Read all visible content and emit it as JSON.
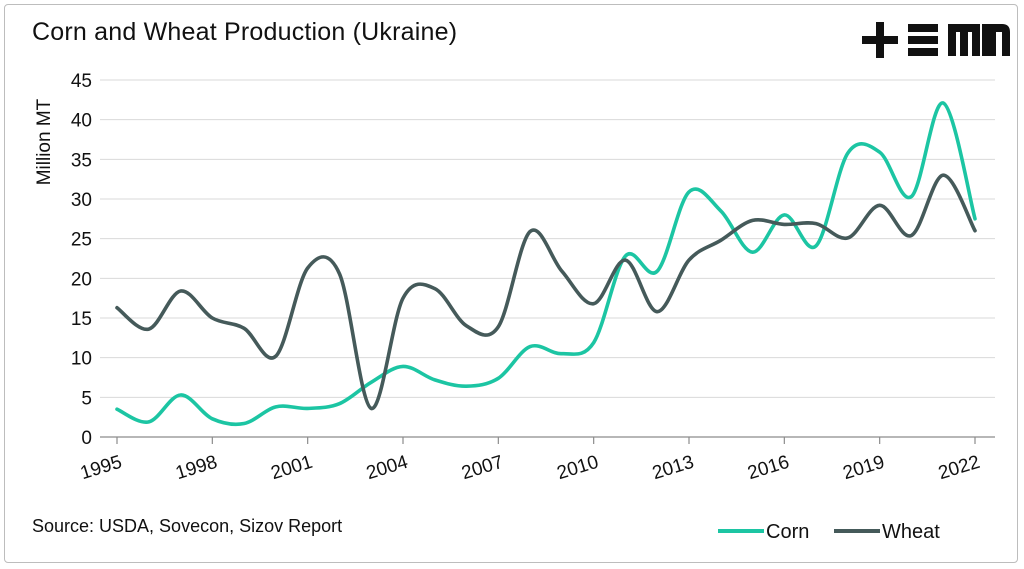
{
  "header": {
    "title": "Corn and Wheat Production (Ukraine)",
    "logo_icon": "tem-logo-icon"
  },
  "footer": {
    "source": "Source: USDA, Sovecon, Sizov Report"
  },
  "colors": {
    "corn": "#1cc5a3",
    "wheat": "#455a5a",
    "grid": "#d9d9d9",
    "axis": "#8c8c8c"
  },
  "chart_data": {
    "type": "line",
    "xlabel": "",
    "ylabel": "Million MT",
    "ylim": [
      0,
      45
    ],
    "yticks": [
      0,
      5,
      10,
      15,
      20,
      25,
      30,
      35,
      40,
      45
    ],
    "xtick_labels": [
      "1995",
      "1998",
      "2001",
      "2004",
      "2007",
      "2010",
      "2013",
      "2016",
      "2019",
      "2022"
    ],
    "grid": true,
    "legend_position": "bottom-right",
    "x": [
      1995,
      1996,
      1997,
      1998,
      1999,
      2000,
      2001,
      2002,
      2003,
      2004,
      2005,
      2006,
      2007,
      2008,
      2009,
      2010,
      2011,
      2012,
      2013,
      2014,
      2015,
      2016,
      2017,
      2018,
      2019,
      2020,
      2021,
      2022
    ],
    "series": [
      {
        "name": "Corn",
        "values": [
          3.5,
          1.9,
          5.3,
          2.3,
          1.7,
          3.8,
          3.6,
          4.2,
          6.9,
          8.9,
          7.2,
          6.4,
          7.4,
          11.4,
          10.5,
          11.9,
          22.8,
          20.9,
          30.9,
          28.5,
          23.3,
          28.0,
          24.1,
          35.8,
          35.9,
          30.3,
          42.1,
          27.5
        ]
      },
      {
        "name": "Wheat",
        "values": [
          16.3,
          13.6,
          18.4,
          15.0,
          13.7,
          10.2,
          21.3,
          20.6,
          3.6,
          17.5,
          18.7,
          14.0,
          13.9,
          25.9,
          20.9,
          16.8,
          22.3,
          15.8,
          22.3,
          24.8,
          27.3,
          26.8,
          26.9,
          25.1,
          29.2,
          25.4,
          33.0,
          26.0
        ]
      }
    ]
  }
}
